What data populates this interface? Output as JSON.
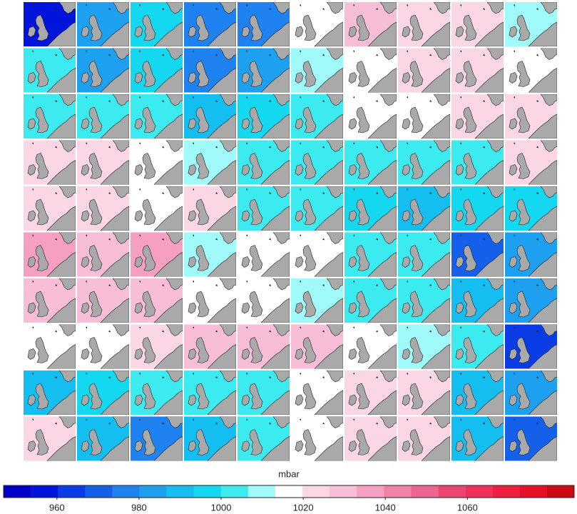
{
  "chart_data": {
    "type": "map-grid",
    "panels": [
      [
        960,
        985,
        995,
        975,
        978,
        1015,
        1028,
        1024,
        1022,
        1012
      ],
      [
        1000,
        982,
        996,
        978,
        985,
        1012,
        1016,
        1020,
        1024,
        1016
      ],
      [
        1005,
        1000,
        1002,
        992,
        996,
        1002,
        1015,
        1018,
        1024,
        1022
      ],
      [
        1020,
        1020,
        1016,
        1008,
        1004,
        1005,
        1000,
        1000,
        1004,
        1020
      ],
      [
        1026,
        1024,
        1016,
        1020,
        1006,
        1004,
        998,
        990,
        996,
        998
      ],
      [
        1036,
        1030,
        1034,
        1008,
        1016,
        1014,
        1006,
        1004,
        968,
        982
      ],
      [
        1032,
        1028,
        1030,
        1016,
        1014,
        1010,
        1004,
        1006,
        988,
        984
      ],
      [
        1014,
        1016,
        1026,
        1028,
        1030,
        1028,
        1016,
        1008,
        1000,
        962
      ],
      [
        990,
        996,
        1000,
        1002,
        1004,
        1014,
        1024,
        1020,
        990,
        985
      ],
      [
        1020,
        988,
        980,
        992,
        1000,
        1016,
        1024,
        1026,
        990,
        972
      ]
    ],
    "colorbar": {
      "label": "mbar",
      "lim": [
        947,
        1086
      ],
      "ticks": [
        960,
        980,
        1000,
        1020,
        1040,
        1060
      ],
      "colors": [
        "#0000c8",
        "#0014dc",
        "#0a3ce6",
        "#1460eb",
        "#1e82f0",
        "#1ea0f0",
        "#14bef0",
        "#14d7f0",
        "#3cebf0",
        "#a0fafa",
        "#ffffff",
        "#fbd7e6",
        "#f8bed7",
        "#f5a0c3",
        "#f082aa",
        "#ee6490",
        "#ee4673",
        "#f0325a",
        "#f01e41",
        "#e60f28",
        "#cd0a14"
      ]
    }
  }
}
